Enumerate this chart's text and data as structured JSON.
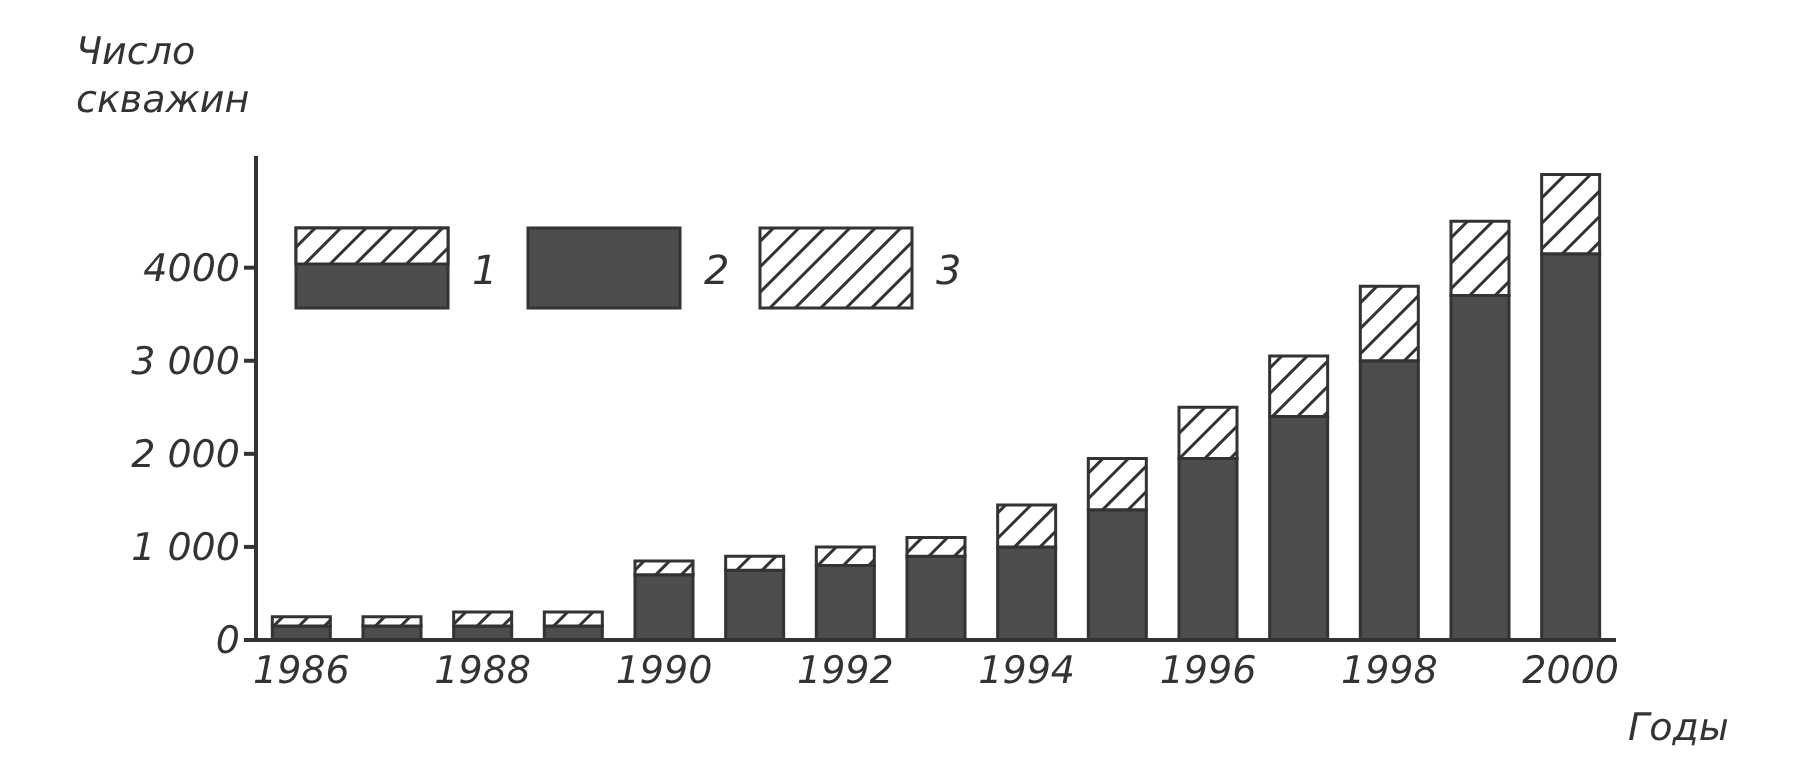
{
  "chart_data": {
    "type": "bar",
    "stacked": true,
    "xlabel": "Годы",
    "ylabel": "Число скважин",
    "categories": [
      "1986",
      null,
      "1988",
      null,
      "1990",
      null,
      "1992",
      null,
      "1994",
      null,
      "1996",
      null,
      "1998",
      null,
      "2000"
    ],
    "series": [
      {
        "name": "2",
        "color": "#4d4d4d",
        "values": [
          150,
          150,
          150,
          150,
          700,
          750,
          800,
          900,
          1000,
          1400,
          1950,
          2400,
          3000,
          3700,
          4150
        ]
      },
      {
        "name": "3",
        "color": "#333333",
        "values": [
          100,
          100,
          150,
          150,
          150,
          150,
          200,
          200,
          450,
          550,
          550,
          650,
          800,
          800,
          850
        ]
      }
    ],
    "annotations": [
      "1"
    ],
    "ylim": [
      0,
      5200
    ],
    "yticks": [
      0,
      {
        "value": 1000,
        "label": "1 000"
      },
      {
        "value": 2000,
        "label": "2 000"
      },
      {
        "value": 3000,
        "label": "3 000"
      },
      4000
    ],
    "legend": "top left"
  }
}
